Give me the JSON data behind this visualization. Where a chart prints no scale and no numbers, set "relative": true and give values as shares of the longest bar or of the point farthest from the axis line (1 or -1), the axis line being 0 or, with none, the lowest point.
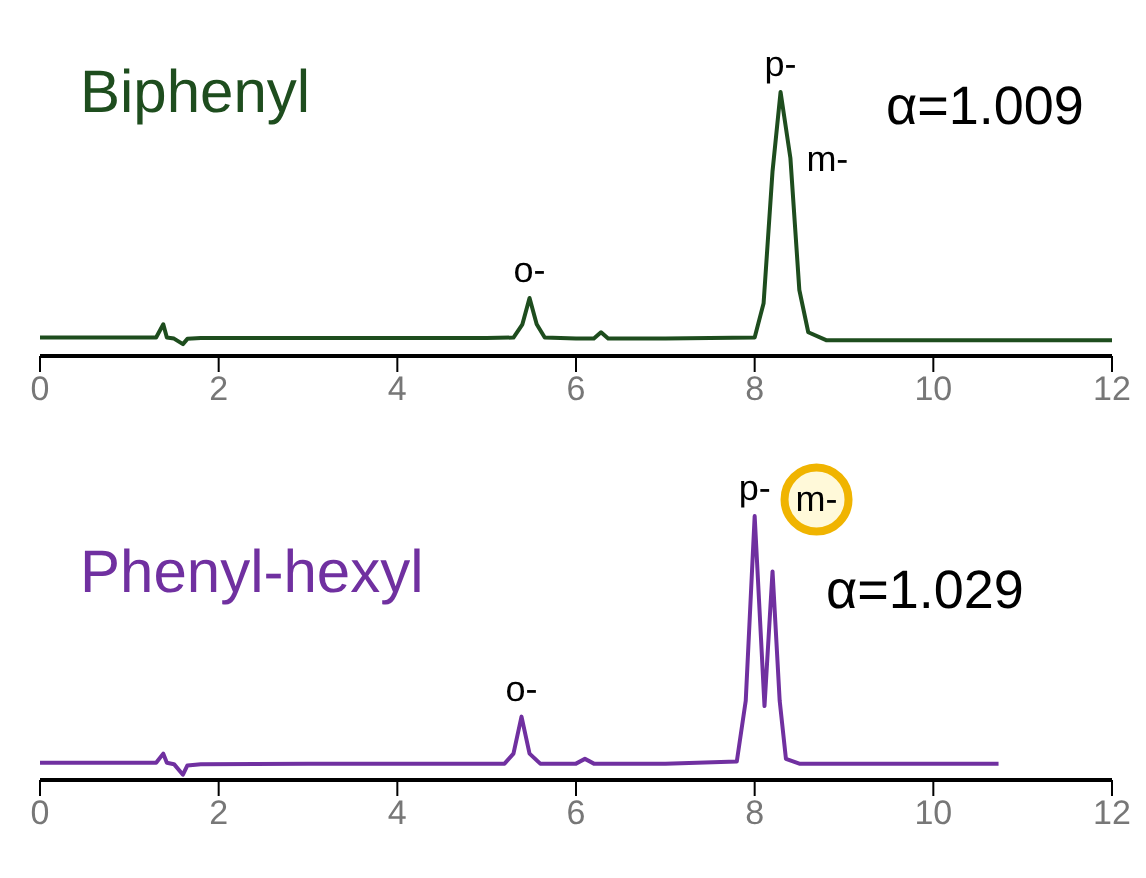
{
  "chart_data": [
    {
      "type": "line",
      "title": "Biphenyl",
      "relative": true,
      "xlim": [
        0,
        12
      ],
      "xticks": [
        0,
        2,
        4,
        6,
        8,
        10,
        12
      ],
      "marker": "none",
      "line_style": "solid",
      "x": [
        0,
        1.3,
        1.38,
        1.42,
        1.5,
        1.6,
        1.65,
        1.8,
        3,
        5,
        5.3,
        5.4,
        5.48,
        5.56,
        5.65,
        6,
        6.2,
        6.28,
        6.36,
        7,
        8,
        8.1,
        8.2,
        8.29,
        8.4,
        8.5,
        8.6,
        8.8,
        10,
        12
      ],
      "series": [
        {
          "color": "#1e4d1e",
          "values": [
            0.07,
            0.07,
            0.12,
            0.07,
            0.066,
            0.045,
            0.065,
            0.068,
            0.068,
            0.068,
            0.07,
            0.12,
            0.22,
            0.12,
            0.07,
            0.066,
            0.066,
            0.09,
            0.066,
            0.066,
            0.07,
            0.2,
            0.7,
            1,
            0.75,
            0.25,
            0.09,
            0.06,
            0.06,
            0.06
          ]
        }
      ],
      "annotations": [
        {
          "text": "o-",
          "x": 5.48,
          "y": 0.22
        },
        {
          "text": "p-",
          "x": 8.29,
          "y": 1
        },
        {
          "text": "m-",
          "x": 8.4,
          "y": 0.75
        },
        "α=1.009"
      ]
    },
    {
      "type": "line",
      "title": "Phenyl-hexyl",
      "relative": true,
      "xlim": [
        0,
        12
      ],
      "xticks": [
        0,
        2,
        4,
        6,
        8,
        10,
        12
      ],
      "marker": "none",
      "line_style": "solid",
      "x": [
        0,
        1.3,
        1.38,
        1.42,
        1.5,
        1.6,
        1.65,
        1.8,
        3,
        5,
        5.2,
        5.3,
        5.39,
        5.48,
        5.6,
        6,
        6.1,
        6.2,
        7,
        7.8,
        7.9,
        8,
        8.11,
        8.2,
        8.28,
        8.35,
        8.5,
        9,
        10.73
      ],
      "series": [
        {
          "color": "#7030a0",
          "values": [
            0.065,
            0.065,
            0.1,
            0.065,
            0.06,
            0.02,
            0.055,
            0.06,
            0.062,
            0.062,
            0.062,
            0.1,
            0.24,
            0.1,
            0.062,
            0.062,
            0.08,
            0.062,
            0.062,
            0.07,
            0.3,
            1,
            0.28,
            0.79,
            0.3,
            0.08,
            0.062,
            0.062,
            0.062
          ]
        }
      ],
      "annotations": [
        {
          "text": "o-",
          "x": 5.39,
          "y": 0.24
        },
        {
          "text": "p-",
          "x": 8,
          "y": 1
        },
        {
          "text": "m-",
          "x": 8.2,
          "y": 0.79
        },
        "α=1.029"
      ]
    }
  ]
}
